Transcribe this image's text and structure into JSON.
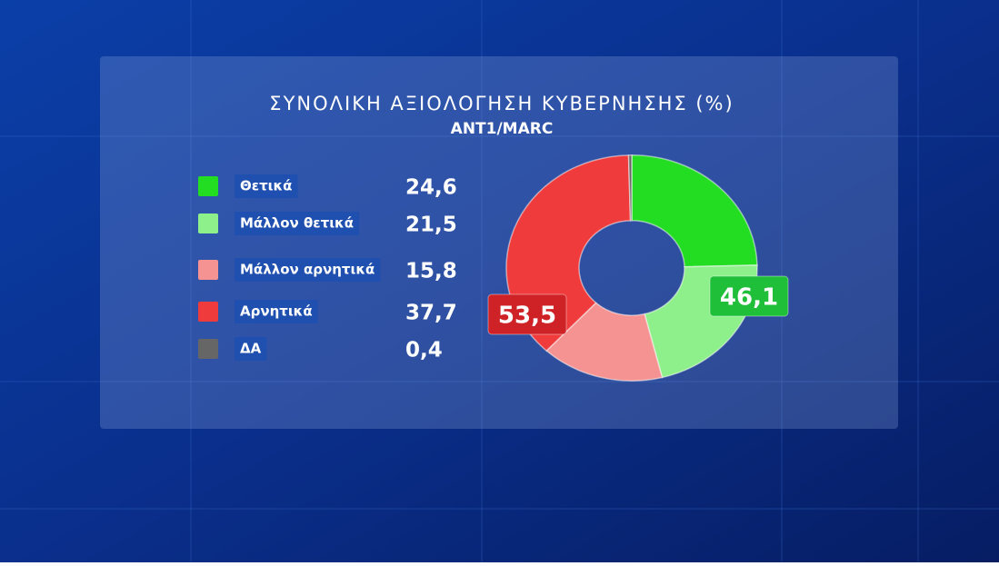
{
  "chart_data": {
    "type": "donut",
    "title": "ΣΥΝΟΛΙΚΗ ΑΞΙΟΛΟΓΗΣΗ ΚΥΒΕΡΝΗΣΗΣ (%)",
    "subtitle": "ANT1/MARC",
    "categories": [
      "Θετικά",
      "Μάλλον θετικά",
      "Μάλλον αρνητικά",
      "Αρνητικά",
      "ΔΑ"
    ],
    "values": [
      24.6,
      21.5,
      15.8,
      37.7,
      0.4
    ],
    "value_labels": [
      "24,6",
      "21,5",
      "15,8",
      "37,7",
      "0,4"
    ],
    "colors": [
      "#22dd22",
      "#8ef08a",
      "#f59393",
      "#ef3b3b",
      "#666666"
    ],
    "group_values": [
      46.1,
      53.5
    ],
    "group_value_labels": [
      "46,1",
      "53,5"
    ],
    "group_colors": [
      "#1fbf3a",
      "#cf2226"
    ]
  }
}
